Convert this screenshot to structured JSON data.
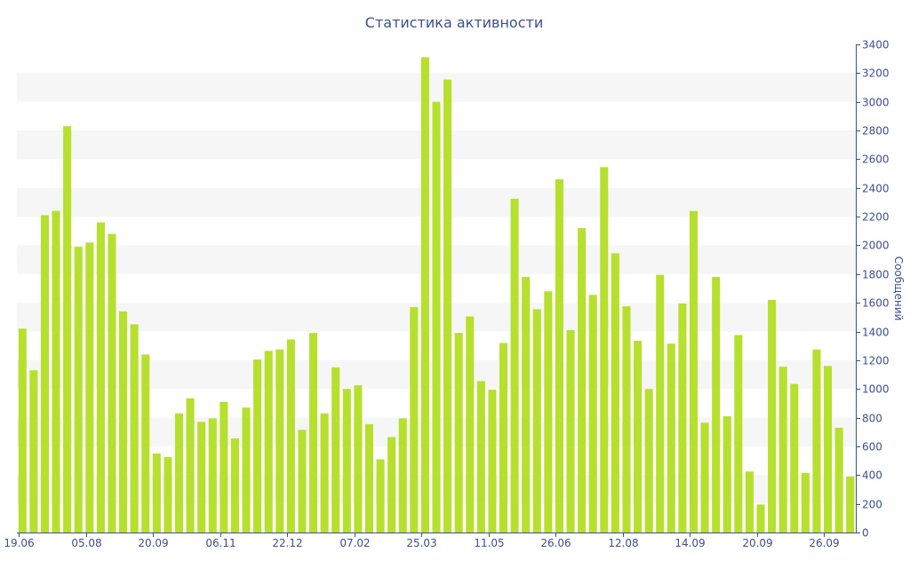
{
  "chart_data": {
    "type": "bar",
    "title": "Статистика активности",
    "ylabel": "Сообщений",
    "xlabel": "",
    "ylim": [
      0,
      3400
    ],
    "y_ticks": [
      0,
      200,
      400,
      600,
      800,
      1000,
      1200,
      1400,
      1600,
      1800,
      2000,
      2200,
      2400,
      2600,
      2800,
      3000,
      3200,
      3400
    ],
    "y_axis_side": "right",
    "grid": "alternating horizontal bands",
    "legend": "none",
    "x_tick_labels": [
      {
        "index": 0,
        "label": "19.06"
      },
      {
        "index": 6,
        "label": "05.08"
      },
      {
        "index": 12,
        "label": "20.09"
      },
      {
        "index": 18,
        "label": "06.11"
      },
      {
        "index": 24,
        "label": "22.12"
      },
      {
        "index": 30,
        "label": "07.02"
      },
      {
        "index": 36,
        "label": "25.03"
      },
      {
        "index": 42,
        "label": "11.05"
      },
      {
        "index": 48,
        "label": "26.06"
      },
      {
        "index": 54,
        "label": "12.08"
      },
      {
        "index": 60,
        "label": "14.09"
      },
      {
        "index": 66,
        "label": "20.09"
      },
      {
        "index": 72,
        "label": "26.09"
      }
    ],
    "values": [
      1420,
      1130,
      2210,
      2240,
      2830,
      1990,
      2020,
      2160,
      2080,
      1540,
      1450,
      1240,
      550,
      525,
      830,
      935,
      770,
      795,
      910,
      655,
      870,
      1205,
      1265,
      1275,
      1345,
      715,
      1390,
      830,
      1150,
      1000,
      1025,
      755,
      510,
      665,
      795,
      1570,
      3310,
      3000,
      3155,
      1390,
      1505,
      1055,
      995,
      1320,
      2325,
      1780,
      1555,
      1680,
      2460,
      1410,
      2120,
      1655,
      2545,
      1945,
      1575,
      1335,
      1000,
      1795,
      1315,
      1595,
      2240,
      765,
      1780,
      810,
      1375,
      425,
      195,
      1620,
      1155,
      1035,
      415,
      1275,
      1160,
      730,
      390
    ],
    "colors": {
      "bar": "#b7df2e",
      "band": "#f6f6f6",
      "text": "#3d4f8f",
      "axis": "#3d4f8f"
    }
  }
}
